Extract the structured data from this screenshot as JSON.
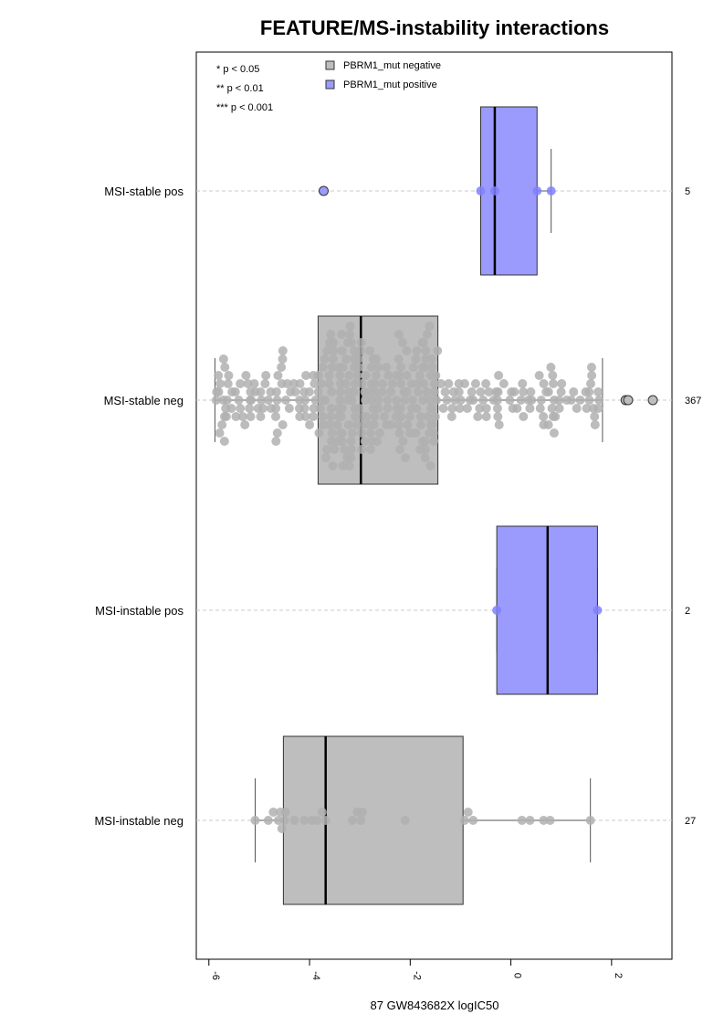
{
  "chart_data": {
    "type": "boxplot",
    "title": "FEATURE/MS-instability interactions",
    "xlabel": "87 GW843682X logIC50",
    "xlim": [
      -6.25,
      3.2
    ],
    "x_ticks": [
      -6,
      -4,
      -2,
      0,
      2
    ],
    "grid": "dashed horizontal line at each category",
    "legend_position": "top-left",
    "significance_legend": [
      "* p < 0.05",
      "** p < 0.01",
      "*** p < 0.001"
    ],
    "legend": [
      {
        "label": "PBRM1_mut negative",
        "color": "#bebebe"
      },
      {
        "label": "PBRM1_mut positive",
        "color": "#9b9bfd"
      }
    ],
    "colors": {
      "negative_box": "#bebebe",
      "positive_box": "#9b9bfd",
      "negative_points": "#b0b0b0",
      "positive_points": "#8080ff"
    },
    "categories": [
      {
        "label": "MSI-stable pos",
        "n": "5",
        "group": "positive",
        "q1": -0.6,
        "median": -0.32,
        "q3": 0.52,
        "whisker_low": -0.6,
        "whisker_high": 0.8,
        "points": [
          -0.6,
          -0.32,
          0.52,
          0.8
        ],
        "outliers": [
          -3.72
        ]
      },
      {
        "label": "MSI-stable neg",
        "n": "367",
        "group": "negative",
        "q1": -3.83,
        "median": -2.98,
        "q3": -1.45,
        "whisker_low": -5.88,
        "whisker_high": 1.82,
        "outliers": [
          2.28,
          2.33,
          2.82
        ]
      },
      {
        "label": "MSI-instable pos",
        "n": "2",
        "group": "positive",
        "q1": -0.28,
        "median": 0.73,
        "q3": 1.72,
        "whisker_low": -0.28,
        "whisker_high": 1.72,
        "points": [
          -0.28,
          1.72
        ],
        "outliers": []
      },
      {
        "label": "MSI-instable neg",
        "n": "27",
        "group": "negative",
        "q1": -4.52,
        "median": -3.68,
        "q3": -0.95,
        "whisker_low": -5.08,
        "whisker_high": 1.58,
        "outliers": [],
        "points": [
          -5.08,
          -4.82,
          -4.72,
          -4.62,
          -4.58,
          -4.55,
          -4.5,
          -4.48,
          -4.3,
          -4.1,
          -3.95,
          -3.85,
          -3.75,
          -3.68,
          -3.15,
          -3.05,
          -2.98,
          -2.95,
          -2.1,
          -0.92,
          -0.85,
          -0.75,
          0.22,
          0.38,
          0.65,
          0.78,
          1.58
        ]
      }
    ]
  }
}
